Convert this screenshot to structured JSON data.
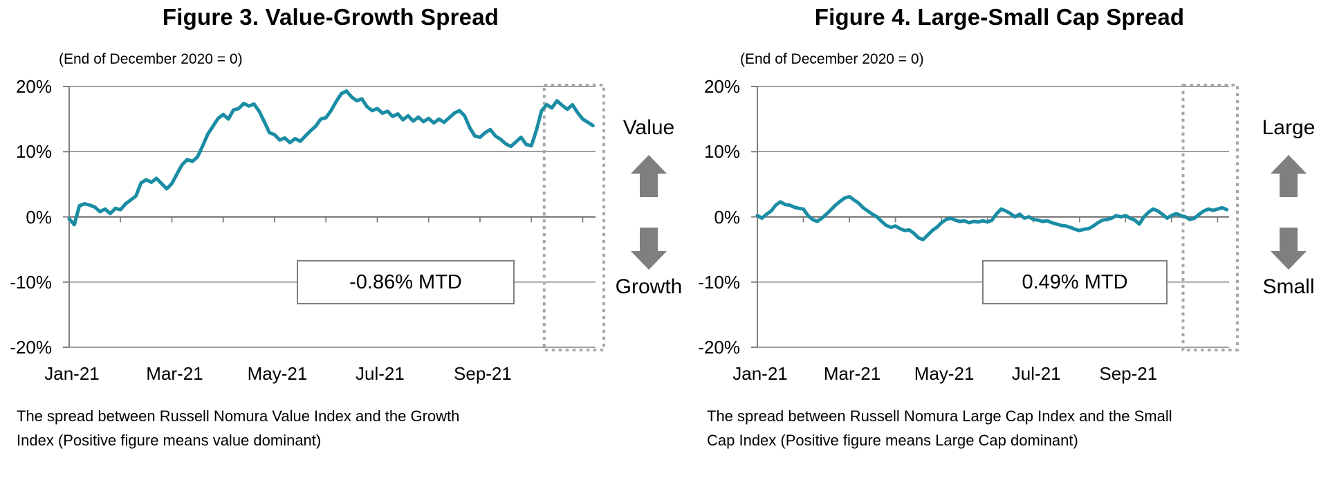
{
  "colors": {
    "line": "#1a8da4",
    "grid": "#7f7f7f",
    "dotted_box": "#a5a8aa",
    "arrow": "#7f7f7f",
    "annotation_border": "#7f7f7f",
    "text": "#000000",
    "background": "#ffffff"
  },
  "chart_data": [
    {
      "type": "line",
      "title": "Figure 3. Value-Growth Spread",
      "subtitle": "(End of December 2020 = 0)",
      "ylabel_ticks": [
        "20%",
        "10%",
        "0%",
        "-10%",
        "-20%"
      ],
      "ytick_values": [
        20,
        10,
        0,
        -10,
        -20
      ],
      "ylim": [
        -20,
        20
      ],
      "xtick_labels": [
        "Jan-21",
        "Mar-21",
        "May-21",
        "Jul-21",
        "Sep-21"
      ],
      "xtick_months": [
        0,
        2,
        4,
        6,
        8
      ],
      "month_tick_positions": [
        1,
        2,
        3,
        4,
        5,
        6,
        7,
        8,
        9,
        10
      ],
      "x_range": [
        0,
        10.25
      ],
      "x_unit": "months since Jan-2021",
      "grid": "horizontal",
      "series": [
        {
          "name": "Value minus Growth spread",
          "x_start": 0,
          "x_step": 0.1,
          "values": [
            -0.3,
            -1.2,
            1.7,
            2.0,
            1.8,
            1.5,
            0.8,
            1.2,
            0.5,
            1.3,
            1.1,
            2.0,
            2.6,
            3.2,
            5.2,
            5.7,
            5.3,
            5.9,
            5.1,
            4.3,
            5.1,
            6.6,
            8.0,
            8.8,
            8.5,
            9.2,
            10.9,
            12.7,
            13.9,
            15.1,
            15.7,
            15.0,
            16.4,
            16.6,
            17.4,
            17.0,
            17.3,
            16.2,
            14.6,
            12.9,
            12.6,
            11.8,
            12.1,
            11.4,
            12.0,
            11.6,
            12.4,
            13.2,
            13.9,
            15.0,
            15.2,
            16.3,
            17.7,
            18.9,
            19.3,
            18.4,
            17.8,
            18.1,
            16.9,
            16.3,
            16.6,
            15.9,
            16.2,
            15.4,
            15.8,
            14.9,
            15.5,
            14.7,
            15.3,
            14.6,
            15.1,
            14.4,
            15.0,
            14.5,
            15.2,
            15.9,
            16.3,
            15.5,
            13.7,
            12.4,
            12.2,
            12.9,
            13.4,
            12.4,
            11.9,
            11.2,
            10.8,
            11.5,
            12.2,
            11.1,
            10.9,
            13.3,
            16.3,
            17.2,
            16.7,
            17.8,
            17.1,
            16.5,
            17.2,
            16.0,
            15.0,
            14.5,
            14.0
          ]
        }
      ],
      "annotation": {
        "text": "-0.86% MTD"
      },
      "highlight_box": {
        "x_start_month": 9.25,
        "note": "dotted border around most recent period"
      },
      "direction_labels": {
        "top": "Value",
        "bottom": "Growth"
      },
      "caption": "The spread between Russell Nomura Value Index and the Growth\nIndex (Positive figure means value dominant)"
    },
    {
      "type": "line",
      "title": "Figure 4. Large-Small Cap Spread",
      "subtitle": "(End of December 2020 = 0)",
      "ylabel_ticks": [
        "20%",
        "10%",
        "0%",
        "-10%",
        "-20%"
      ],
      "ytick_values": [
        20,
        10,
        0,
        -10,
        -20
      ],
      "ylim": [
        -20,
        20
      ],
      "xtick_labels": [
        "Jan-21",
        "Mar-21",
        "May-21",
        "Jul-21",
        "Sep-21"
      ],
      "xtick_months": [
        0,
        2,
        4,
        6,
        8
      ],
      "month_tick_positions": [
        1,
        2,
        3,
        4,
        5,
        6,
        7,
        8,
        9,
        10
      ],
      "x_range": [
        0,
        10.25
      ],
      "x_unit": "months since Jan-2021",
      "grid": "horizontal",
      "series": [
        {
          "name": "Large minus Small cap spread",
          "x_start": 0,
          "x_step": 0.1,
          "values": [
            0.2,
            -0.2,
            0.4,
            0.9,
            1.8,
            2.3,
            1.9,
            1.8,
            1.5,
            1.3,
            1.2,
            0.2,
            -0.4,
            -0.7,
            -0.2,
            0.4,
            1.1,
            1.8,
            2.4,
            2.9,
            3.1,
            2.6,
            2.1,
            1.4,
            0.9,
            0.4,
            0.0,
            -0.7,
            -1.3,
            -1.6,
            -1.4,
            -1.8,
            -2.1,
            -2.0,
            -2.5,
            -3.2,
            -3.5,
            -2.8,
            -2.1,
            -1.6,
            -0.9,
            -0.4,
            -0.2,
            -0.5,
            -0.7,
            -0.6,
            -0.9,
            -0.7,
            -0.8,
            -0.6,
            -0.8,
            -0.5,
            0.5,
            1.2,
            0.9,
            0.5,
            0.0,
            0.4,
            -0.2,
            0.0,
            -0.4,
            -0.5,
            -0.7,
            -0.6,
            -0.9,
            -1.1,
            -1.3,
            -1.4,
            -1.6,
            -1.9,
            -2.1,
            -1.9,
            -1.8,
            -1.4,
            -0.9,
            -0.5,
            -0.4,
            -0.2,
            0.2,
            0.0,
            0.2,
            -0.2,
            -0.5,
            -1.1,
            0.0,
            0.7,
            1.2,
            0.9,
            0.4,
            -0.2,
            0.2,
            0.5,
            0.2,
            0.0,
            -0.4,
            -0.2,
            0.4,
            0.9,
            1.2,
            1.0,
            1.2,
            1.4,
            1.1
          ]
        }
      ],
      "annotation": {
        "text": "0.49% MTD"
      },
      "highlight_box": {
        "x_start_month": 9.25,
        "note": "dotted border around most recent period"
      },
      "direction_labels": {
        "top": "Large",
        "bottom": "Small"
      },
      "caption": "The spread between Russell Nomura Large Cap Index and the Small\nCap Index (Positive figure means Large Cap dominant)"
    }
  ]
}
